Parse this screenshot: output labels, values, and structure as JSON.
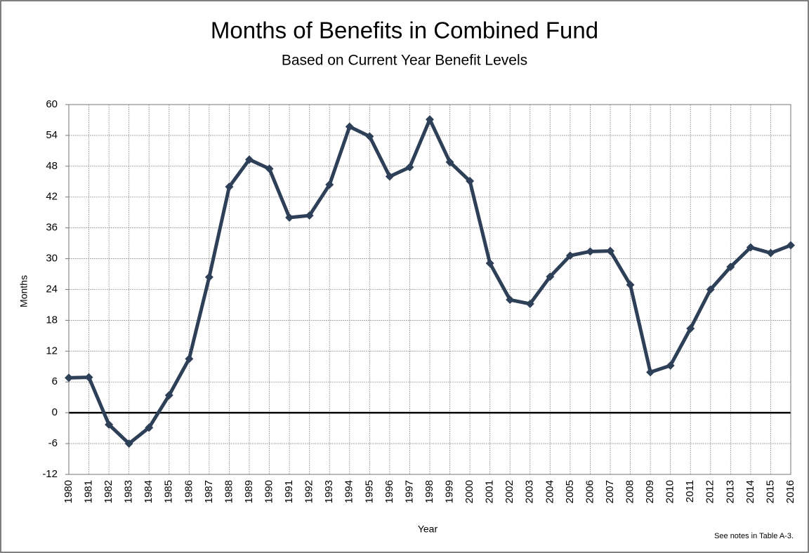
{
  "chart_data": {
    "type": "line",
    "title": "Months of Benefits in Combined Fund",
    "subtitle": "Based on Current Year Benefit Levels",
    "x_label": "Year",
    "y_label": "Months",
    "note": "See notes  in Table A-3.",
    "categories": [
      "1980",
      "1981",
      "1982",
      "1983",
      "1984",
      "1985",
      "1986",
      "1987",
      "1988",
      "1989",
      "1990",
      "1991",
      "1992",
      "1993",
      "1994",
      "1995",
      "1996",
      "1997",
      "1998",
      "1999",
      "2000",
      "2001",
      "2002",
      "2003",
      "2004",
      "2005",
      "2006",
      "2007",
      "2008",
      "2009",
      "2010",
      "2011",
      "2012",
      "2013",
      "2014",
      "2015",
      "2016"
    ],
    "values": [
      6.8,
      6.9,
      -2.3,
      -6.0,
      -2.9,
      3.4,
      10.5,
      26.4,
      44.0,
      49.3,
      47.5,
      38.0,
      38.4,
      44.4,
      55.7,
      53.8,
      46.0,
      47.8,
      57.1,
      48.8,
      45.1,
      29.1,
      22.0,
      21.2,
      26.5,
      30.6,
      31.4,
      31.5,
      24.9,
      7.9,
      9.2,
      16.4,
      24.0,
      28.4,
      32.2,
      31.1,
      32.6
    ],
    "color": "#2e3f58",
    "ylim": [
      -12,
      60
    ],
    "yticks": [
      -12,
      -6,
      0,
      6,
      12,
      18,
      24,
      30,
      36,
      42,
      48,
      54,
      60
    ],
    "grid": true,
    "zero_line": true
  }
}
